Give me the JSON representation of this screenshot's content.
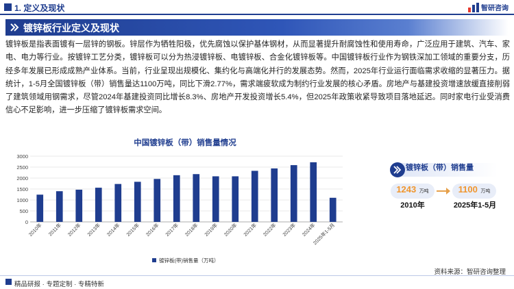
{
  "header": {
    "section_title": "1. 定义及现状",
    "logo_text": "智研咨询"
  },
  "banner": {
    "title": "镀锌板行业定义及现状"
  },
  "body_text": "镀锌板是指表面镀有一层锌的钢板。锌层作为牺牲阳极，优先腐蚀以保护基体钢材，从而显著提升耐腐蚀性和使用寿命，广泛应用于建筑、汽车、家电、电力等行业。按镀锌工艺分类，镀锌板可以分为热浸镀锌板、电镀锌板、合金化镀锌板等。中国镀锌板行业作为钢铁深加工领域的重要分支，历经多年发展已形成成熟产业体系。当前，行业呈现出规模化、集约化与高端化并行的发展态势。然而，2025年行业运行面临需求收缩的显著压力。据统计，1-5月全国镀锌板（带）销售量达1100万吨，同比下滑2.77%，需求端疲软成为制约行业发展的核心矛盾。房地产与基建投资增速放缓直接削弱了建筑领域用钢需求，尽管2024年基建投资同比增长8.3%、房地产开发投资增长5.4%，但2025年政策收紧导致项目落地延迟。同时家电行业受消费信心不足影响，进一步压缩了镀锌板需求空间。",
  "chart_data": {
    "type": "bar",
    "title": "中国镀锌板（带）销售量情况",
    "categories": [
      "2010年",
      "2011年",
      "2012年",
      "2013年",
      "2014年",
      "2015年",
      "2016年",
      "2017年",
      "2018年",
      "2019年",
      "2020年",
      "2021年",
      "2022年",
      "2023年",
      "2024年",
      "2025年1-5月"
    ],
    "series": [
      {
        "name": "镀锌板(带)销售量（万吨）",
        "values": [
          1243,
          1400,
          1470,
          1560,
          1730,
          1830,
          1960,
          2130,
          2180,
          2080,
          2080,
          2330,
          2440,
          2590,
          2720,
          1100
        ]
      }
    ],
    "ylim": [
      0,
      3000
    ],
    "yticks": [
      0,
      500,
      1000,
      1500,
      2000,
      2500,
      3000
    ],
    "grid": true,
    "legend": "bottom",
    "bar_color": "#1f3d8f"
  },
  "card": {
    "title": "镀锌板（带）销售量",
    "left_value": "1243",
    "left_unit": "万吨",
    "left_period": "2010年",
    "right_value": "1100",
    "right_unit": "万吨",
    "right_period": "2025年1-5月"
  },
  "source": "资料来源：智研咨询整理",
  "footer": {
    "slogan": "精品研报 · 专题定制 · 专精特新"
  }
}
